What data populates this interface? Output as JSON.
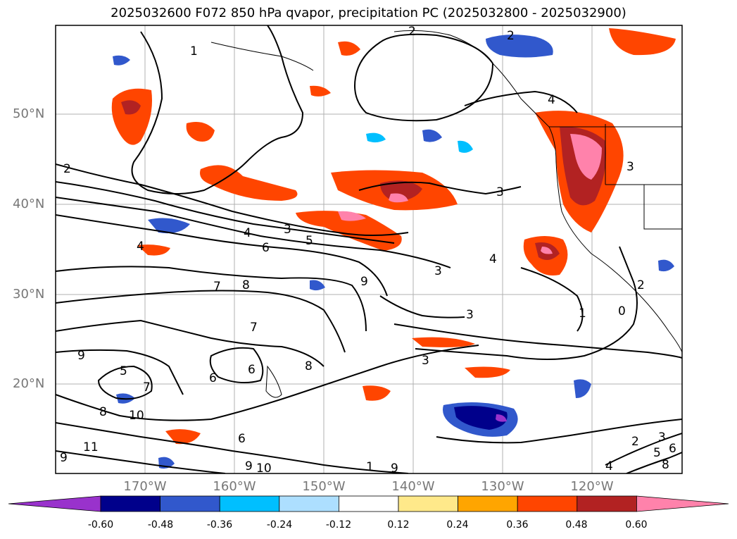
{
  "title": "2025032600 F072 850 hPa qvapor, precipitation PC (2025032800 - 2025032900)",
  "lat_ticks": [
    "50°N",
    "40°N",
    "30°N",
    "20°N"
  ],
  "lon_ticks": [
    "170°W",
    "160°W",
    "150°W",
    "140°W",
    "130°W",
    "120°W"
  ],
  "colorbar": {
    "colors": [
      "#9932CC",
      "#00008B",
      "#3158CC",
      "#00BFFF",
      "#ADDFFF",
      "#FFFFFF",
      "#FFE98A",
      "#FFA500",
      "#FF4500",
      "#B22222",
      "#FF82AB"
    ],
    "tick_labels": [
      "-0.60",
      "-0.48",
      "-0.36",
      "-0.24",
      "-0.12",
      "0.12",
      "0.24",
      "0.36",
      "0.48",
      "0.60"
    ]
  },
  "contour_labels": [
    "1",
    "2",
    "2",
    "2",
    "4",
    "3",
    "4",
    "3",
    "6",
    "5",
    "7",
    "8",
    "9",
    "3",
    "4",
    "3",
    "1",
    "0",
    "3",
    "9",
    "10",
    "8",
    "11",
    "7",
    "6",
    "9",
    "10",
    "1",
    "9",
    "2",
    "3",
    "4",
    "5",
    "6",
    "8",
    "9",
    "2",
    "5",
    "6",
    "8",
    "3",
    "4",
    "6",
    "7"
  ]
}
